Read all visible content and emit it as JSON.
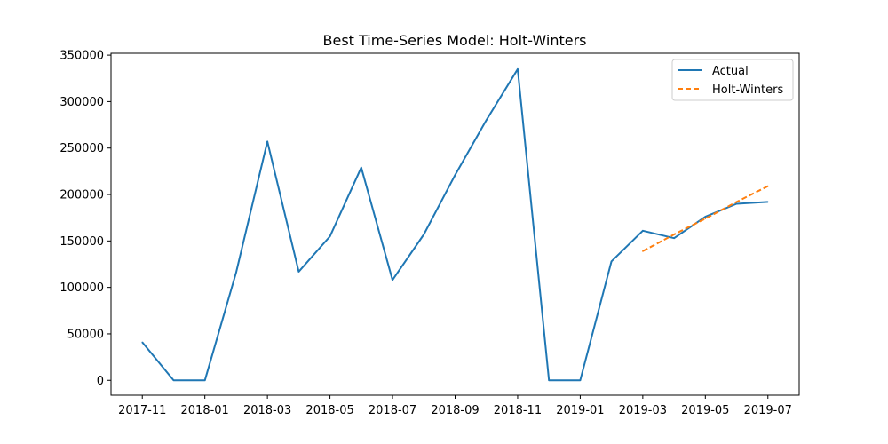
{
  "chart_data": {
    "type": "line",
    "title": "Best Time-Series Model: Holt-Winters",
    "xlabel": "",
    "ylabel": "",
    "x_tick_labels": [
      "2017-11",
      "2018-01",
      "2018-03",
      "2018-05",
      "2018-07",
      "2018-09",
      "2018-11",
      "2019-01",
      "2019-03",
      "2019-05",
      "2019-07"
    ],
    "y_tick_labels": [
      "0",
      "50000",
      "100000",
      "150000",
      "200000",
      "250000",
      "300000",
      "350000"
    ],
    "ylim": [
      -16000,
      352000
    ],
    "xlim": [
      "2017-10",
      "2019-08"
    ],
    "legend_position": "top-right",
    "grid": false,
    "series": [
      {
        "name": "Actual",
        "color": "#1f77b4",
        "style": "solid",
        "x": [
          "2017-11",
          "2017-12",
          "2018-01",
          "2018-02",
          "2018-03",
          "2018-04",
          "2018-05",
          "2018-06",
          "2018-07",
          "2018-08",
          "2018-09",
          "2018-10",
          "2018-11",
          "2018-12",
          "2019-01",
          "2019-02",
          "2019-03",
          "2019-04",
          "2019-05",
          "2019-06",
          "2019-07"
        ],
        "values": [
          41000,
          0,
          0,
          116000,
          257000,
          117000,
          155000,
          229000,
          108000,
          157000,
          221000,
          280000,
          335000,
          0,
          0,
          128000,
          161000,
          153000,
          176000,
          190000,
          192000
        ]
      },
      {
        "name": "Holt-Winters",
        "color": "#ff7f0e",
        "style": "dashed",
        "x": [
          "2019-03",
          "2019-04",
          "2019-05",
          "2019-06",
          "2019-07"
        ],
        "values": [
          139000,
          157000,
          174000,
          192000,
          209000
        ]
      }
    ]
  }
}
